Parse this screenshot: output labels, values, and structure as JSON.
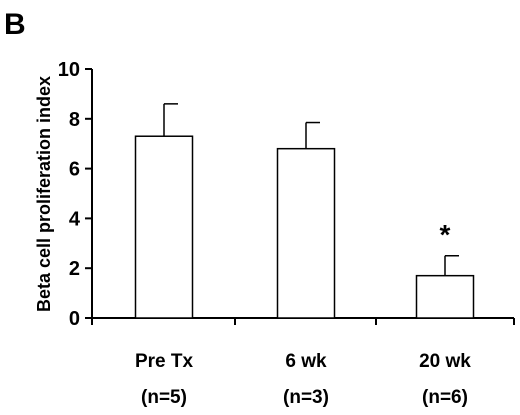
{
  "panel_label": "B",
  "chart_data": {
    "type": "bar",
    "categories": [
      "Pre Tx",
      "6 wk",
      "20 wk"
    ],
    "sublabels": [
      "(n=5)",
      "(n=3)",
      "(n=6)"
    ],
    "values": [
      7.3,
      6.8,
      1.7
    ],
    "errors": [
      1.3,
      1.05,
      0.8
    ],
    "annotations": [
      "",
      "",
      "*"
    ],
    "ylabel": "Beta cell proliferation index",
    "xlabel": "",
    "title": "",
    "ylim": [
      0,
      10
    ],
    "yticks": [
      "0",
      "2",
      "4",
      "6",
      "8",
      "10"
    ],
    "grid": false,
    "colors": {
      "bar_fill": "#ffffff",
      "stroke": "#000000"
    }
  }
}
